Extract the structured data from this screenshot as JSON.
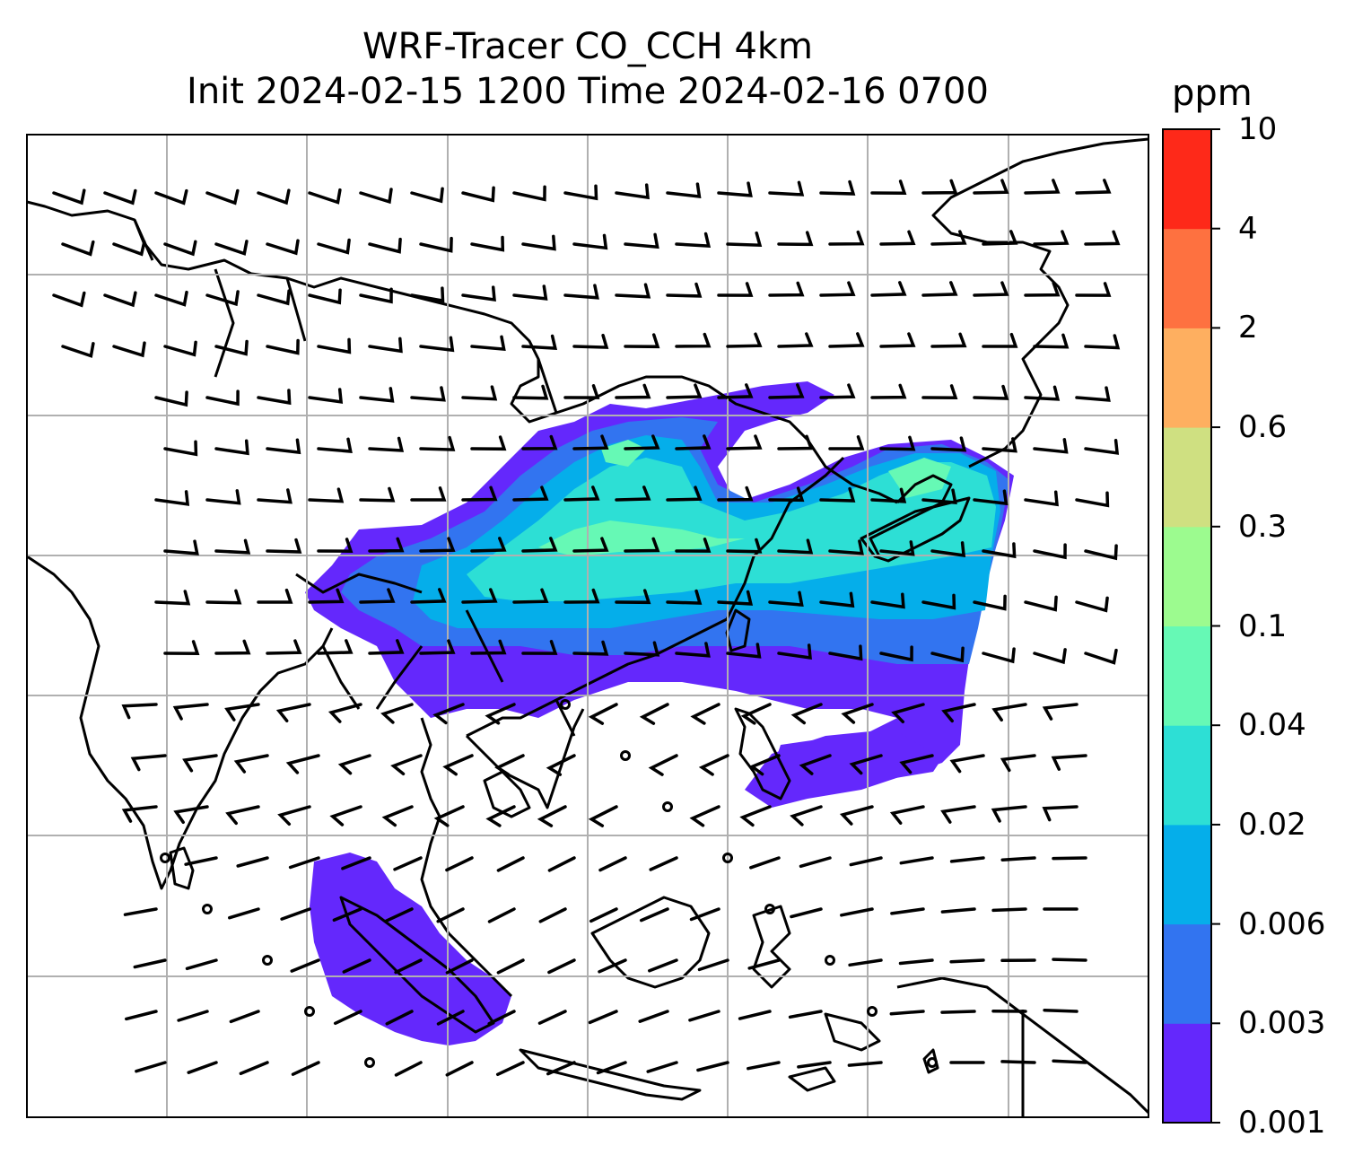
{
  "title": {
    "line1": "WRF-Tracer CO_CCH 4km",
    "line2": "Init 2024-02-15 1200 Time 2024-02-16 0700"
  },
  "colorbar": {
    "units": "ppm",
    "levels": [
      "0.001",
      "0.003",
      "0.006",
      "0.02",
      "0.04",
      "0.1",
      "0.3",
      "0.6",
      "2",
      "4",
      "10"
    ],
    "colors": [
      "#6428fc",
      "#3274f0",
      "#05aeea",
      "#2ddfd5",
      "#66f9b5",
      "#9cfb8f",
      "#cfe081",
      "#feaf60",
      "#fe7140",
      "#fe2919"
    ]
  },
  "map": {
    "gridlines": true,
    "coastline_color": "#000000",
    "gridline_color": "#b0b0b0",
    "overlay": "wind barbs",
    "plume_description_colors": {
      "low": "#6428fc",
      "mid": "#3274f0",
      "high": "#05aeea",
      "core": "#2ddfd5",
      "peak": "#66f9b5"
    }
  }
}
